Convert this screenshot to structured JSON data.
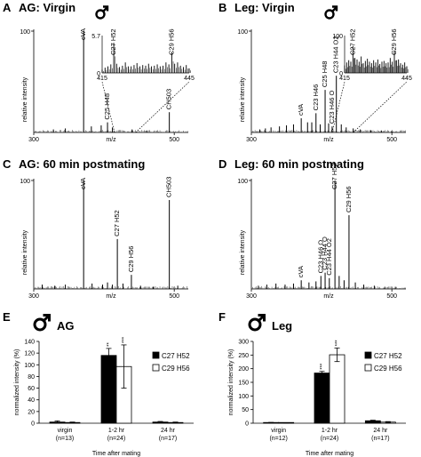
{
  "panels": [
    {
      "letter": "A",
      "title": "AG: Virgin"
    },
    {
      "letter": "B",
      "title": "Leg: Virgin"
    },
    {
      "letter": "C",
      "title": "AG: 60 min postmating"
    },
    {
      "letter": "D",
      "title": "Leg: 60 min postmating"
    },
    {
      "letter": "E",
      "title": "AG"
    },
    {
      "letter": "F",
      "title": "Leg"
    }
  ],
  "chart_data": [
    {
      "panel": "A",
      "type": "line",
      "title": "AG: Virgin",
      "xlabel": "m/z",
      "ylabel": "relative intensity",
      "xlim": [
        300,
        520
      ],
      "ylim": [
        0,
        100
      ],
      "x_ticks": [
        300,
        500
      ],
      "y_ticks": [
        100
      ],
      "peaks": [
        {
          "mz": 328,
          "rel": 3
        },
        {
          "mz": 345,
          "rel": 4
        },
        {
          "mz": 371,
          "rel": 100
        },
        {
          "mz": 382,
          "rel": 6
        },
        {
          "mz": 396,
          "rel": 7
        },
        {
          "mz": 405,
          "rel": 10
        },
        {
          "mz": 412,
          "rel": 5
        },
        {
          "mz": 440,
          "rel": 3
        },
        {
          "mz": 461,
          "rel": 2
        },
        {
          "mz": 493,
          "rel": 20
        }
      ],
      "labels": [
        {
          "text": "cVA",
          "mz": 371
        },
        {
          "text": "C25 H48",
          "mz": 405
        },
        {
          "text": "CH503",
          "mz": 493
        }
      ],
      "inset": {
        "xlim": [
          415,
          445
        ],
        "ylim": [
          0,
          5.7
        ],
        "x_ticks": [
          415,
          445
        ],
        "y_ticks": [
          0,
          5.7
        ],
        "labels": [
          {
            "text": "C27 H52",
            "mz": 419
          },
          {
            "text": "C29 H56",
            "mz": 439
          }
        ],
        "peaks": [
          {
            "mz": 415,
            "rel": 0.5
          },
          {
            "mz": 416,
            "rel": 0.8
          },
          {
            "mz": 417,
            "rel": 1.0
          },
          {
            "mz": 418,
            "rel": 1.3
          },
          {
            "mz": 419,
            "rel": 4.6
          },
          {
            "mz": 420,
            "rel": 1.4
          },
          {
            "mz": 421,
            "rel": 0.9
          },
          {
            "mz": 422,
            "rel": 1.1
          },
          {
            "mz": 423,
            "rel": 1.6
          },
          {
            "mz": 424,
            "rel": 1.0
          },
          {
            "mz": 425,
            "rel": 1.0
          },
          {
            "mz": 426,
            "rel": 1.2
          },
          {
            "mz": 427,
            "rel": 1.5
          },
          {
            "mz": 428,
            "rel": 1.0
          },
          {
            "mz": 429,
            "rel": 1.2
          },
          {
            "mz": 430,
            "rel": 1.1
          },
          {
            "mz": 431,
            "rel": 1.4
          },
          {
            "mz": 432,
            "rel": 1.0
          },
          {
            "mz": 433,
            "rel": 1.1
          },
          {
            "mz": 434,
            "rel": 1.3
          },
          {
            "mz": 435,
            "rel": 1.0
          },
          {
            "mz": 436,
            "rel": 1.1
          },
          {
            "mz": 437,
            "rel": 1.6
          },
          {
            "mz": 438,
            "rel": 1.3
          },
          {
            "mz": 439,
            "rel": 3.2
          },
          {
            "mz": 440,
            "rel": 1.4
          },
          {
            "mz": 441,
            "rel": 1.6
          },
          {
            "mz": 442,
            "rel": 1.1
          },
          {
            "mz": 443,
            "rel": 0.9
          },
          {
            "mz": 444,
            "rel": 1.2
          },
          {
            "mz": 445,
            "rel": 0.7
          }
        ]
      }
    },
    {
      "panel": "B",
      "type": "line",
      "title": "Leg: Virgin",
      "xlabel": "m/z",
      "ylabel": "relative intensity",
      "xlim": [
        300,
        520
      ],
      "ylim": [
        0,
        100
      ],
      "x_ticks": [
        300,
        500
      ],
      "y_ticks": [
        100
      ],
      "peaks": [
        {
          "mz": 312,
          "rel": 3
        },
        {
          "mz": 320,
          "rel": 4
        },
        {
          "mz": 328,
          "rel": 5
        },
        {
          "mz": 340,
          "rel": 6
        },
        {
          "mz": 350,
          "rel": 7
        },
        {
          "mz": 360,
          "rel": 8
        },
        {
          "mz": 371,
          "rel": 14
        },
        {
          "mz": 380,
          "rel": 10
        },
        {
          "mz": 386,
          "rel": 10
        },
        {
          "mz": 392,
          "rel": 19
        },
        {
          "mz": 398,
          "rel": 8
        },
        {
          "mz": 405,
          "rel": 42
        },
        {
          "mz": 410,
          "rel": 9
        },
        {
          "mz": 415,
          "rel": 6
        },
        {
          "mz": 421,
          "rel": 56
        },
        {
          "mz": 428,
          "rel": 8
        },
        {
          "mz": 435,
          "rel": 5
        },
        {
          "mz": 445,
          "rel": 4
        },
        {
          "mz": 455,
          "rel": 3
        },
        {
          "mz": 470,
          "rel": 2
        },
        {
          "mz": 485,
          "rel": 2
        },
        {
          "mz": 500,
          "rel": 1
        }
      ],
      "labels": [
        {
          "text": "cVA",
          "mz": 371
        },
        {
          "text": "C23 H46",
          "mz": 392
        },
        {
          "text": "C25 H48",
          "mz": 405
        },
        {
          "text": "C23 H46 O",
          "mz": 415
        },
        {
          "text": "C23 H44 O2",
          "mz": 421
        }
      ],
      "inset": {
        "xlim": [
          415,
          445
        ],
        "ylim": [
          0,
          100
        ],
        "x_ticks": [
          415,
          445
        ],
        "y_ticks": [
          0,
          100
        ],
        "labels": [
          {
            "text": "C27 H52",
            "mz": 419
          },
          {
            "text": "C29 H56",
            "mz": 439
          }
        ],
        "peaks": [
          {
            "mz": 415,
            "rel": 20
          },
          {
            "mz": 416,
            "rel": 28
          },
          {
            "mz": 417,
            "rel": 34
          },
          {
            "mz": 418,
            "rel": 30
          },
          {
            "mz": 419,
            "rel": 72
          },
          {
            "mz": 420,
            "rel": 40
          },
          {
            "mz": 421,
            "rel": 36
          },
          {
            "mz": 422,
            "rel": 30
          },
          {
            "mz": 423,
            "rel": 44
          },
          {
            "mz": 424,
            "rel": 26
          },
          {
            "mz": 425,
            "rel": 32
          },
          {
            "mz": 426,
            "rel": 38
          },
          {
            "mz": 427,
            "rel": 30
          },
          {
            "mz": 428,
            "rel": 26
          },
          {
            "mz": 429,
            "rel": 34
          },
          {
            "mz": 430,
            "rel": 28
          },
          {
            "mz": 431,
            "rel": 36
          },
          {
            "mz": 432,
            "rel": 24
          },
          {
            "mz": 433,
            "rel": 30
          },
          {
            "mz": 434,
            "rel": 32
          },
          {
            "mz": 435,
            "rel": 26
          },
          {
            "mz": 436,
            "rel": 28
          },
          {
            "mz": 437,
            "rel": 40
          },
          {
            "mz": 438,
            "rel": 30
          },
          {
            "mz": 439,
            "rel": 60
          },
          {
            "mz": 440,
            "rel": 34
          },
          {
            "mz": 441,
            "rel": 36
          },
          {
            "mz": 442,
            "rel": 26
          },
          {
            "mz": 443,
            "rel": 22
          },
          {
            "mz": 444,
            "rel": 28
          },
          {
            "mz": 445,
            "rel": 18
          }
        ]
      }
    },
    {
      "panel": "C",
      "type": "line",
      "title": "AG: 60 min postmating",
      "xlabel": "m/z",
      "ylabel": "relative intensity",
      "xlim": [
        300,
        520
      ],
      "ylim": [
        0,
        100
      ],
      "x_ticks": [
        300,
        500
      ],
      "y_ticks": [
        100
      ],
      "peaks": [
        {
          "mz": 312,
          "rel": 4
        },
        {
          "mz": 330,
          "rel": 3
        },
        {
          "mz": 345,
          "rel": 4
        },
        {
          "mz": 371,
          "rel": 100
        },
        {
          "mz": 383,
          "rel": 5
        },
        {
          "mz": 398,
          "rel": 4
        },
        {
          "mz": 405,
          "rel": 6
        },
        {
          "mz": 412,
          "rel": 4
        },
        {
          "mz": 419,
          "rel": 46
        },
        {
          "mz": 427,
          "rel": 5
        },
        {
          "mz": 439,
          "rel": 13
        },
        {
          "mz": 452,
          "rel": 3
        },
        {
          "mz": 470,
          "rel": 2
        },
        {
          "mz": 493,
          "rel": 82
        },
        {
          "mz": 505,
          "rel": 3
        }
      ],
      "labels": [
        {
          "text": "cVA",
          "mz": 371
        },
        {
          "text": "C27 H52",
          "mz": 419
        },
        {
          "text": "C29 H56",
          "mz": 439
        },
        {
          "text": "CH503",
          "mz": 493
        }
      ]
    },
    {
      "panel": "D",
      "type": "line",
      "title": "Leg: 60 min postmating",
      "xlabel": "m/z",
      "ylabel": "relative intensity",
      "xlim": [
        300,
        520
      ],
      "ylim": [
        0,
        100
      ],
      "x_ticks": [
        300,
        500
      ],
      "y_ticks": [
        100
      ],
      "peaks": [
        {
          "mz": 310,
          "rel": 3
        },
        {
          "mz": 322,
          "rel": 4
        },
        {
          "mz": 335,
          "rel": 5
        },
        {
          "mz": 348,
          "rel": 4
        },
        {
          "mz": 360,
          "rel": 5
        },
        {
          "mz": 371,
          "rel": 8
        },
        {
          "mz": 382,
          "rel": 6
        },
        {
          "mz": 392,
          "rel": 7
        },
        {
          "mz": 399,
          "rel": 12
        },
        {
          "mz": 405,
          "rel": 15
        },
        {
          "mz": 411,
          "rel": 10
        },
        {
          "mz": 419,
          "rel": 100
        },
        {
          "mz": 425,
          "rel": 12
        },
        {
          "mz": 432,
          "rel": 8
        },
        {
          "mz": 439,
          "rel": 68
        },
        {
          "mz": 448,
          "rel": 6
        },
        {
          "mz": 460,
          "rel": 4
        },
        {
          "mz": 475,
          "rel": 3
        },
        {
          "mz": 490,
          "rel": 2
        },
        {
          "mz": 505,
          "rel": 2
        }
      ],
      "labels": [
        {
          "text": "cVA",
          "mz": 371
        },
        {
          "text": "C23 H46 O",
          "mz": 399
        },
        {
          "text": "C23 H44 O",
          "mz": 405
        },
        {
          "text": "C23 H44 O2",
          "mz": 411
        },
        {
          "text": "C27 H52",
          "mz": 419
        },
        {
          "text": "C29 H56",
          "mz": 439
        }
      ]
    },
    {
      "panel": "E",
      "type": "bar",
      "title": "AG",
      "xlabel": "Time after mating",
      "ylabel": "normalized intensity (%)",
      "ylim": [
        0,
        140
      ],
      "y_ticks": [
        0,
        20,
        40,
        60,
        80,
        100,
        120,
        140
      ],
      "categories": [
        "virgin\n(n=13)",
        "1-2 hr\n(n=24)",
        "24 hr\n(n=17)"
      ],
      "series": [
        {
          "name": "C27 H52",
          "color": "#000000",
          "values": [
            2,
            116,
            2
          ],
          "errors": [
            2,
            12,
            1
          ]
        },
        {
          "name": "C29 H56",
          "color": "#ffffff",
          "values": [
            1,
            97,
            1
          ],
          "errors": [
            1,
            37,
            1
          ]
        }
      ],
      "significance": [
        {
          "category": 1,
          "series": 0,
          "text": "**"
        },
        {
          "category": 1,
          "series": 1,
          "text": "***"
        }
      ]
    },
    {
      "panel": "F",
      "type": "bar",
      "title": "Leg",
      "xlabel": "Time after mating",
      "ylabel": "normalized intensity (%)",
      "ylim": [
        0,
        300
      ],
      "y_ticks": [
        0,
        50,
        100,
        150,
        200,
        250,
        300
      ],
      "categories": [
        "virgin\n(n=12)",
        "1-2 hr\n(n=24)",
        "24 hr\n(n=17)"
      ],
      "series": [
        {
          "name": "C27 H52",
          "color": "#000000",
          "values": [
            2,
            184,
            9
          ],
          "errors": [
            1,
            6,
            2
          ]
        },
        {
          "name": "C29 H56",
          "color": "#ffffff",
          "values": [
            1,
            251,
            4
          ],
          "errors": [
            1,
            25,
            2
          ]
        }
      ],
      "significance": [
        {
          "category": 1,
          "series": 0,
          "text": "***"
        },
        {
          "category": 1,
          "series": 1,
          "text": "***"
        }
      ]
    }
  ]
}
